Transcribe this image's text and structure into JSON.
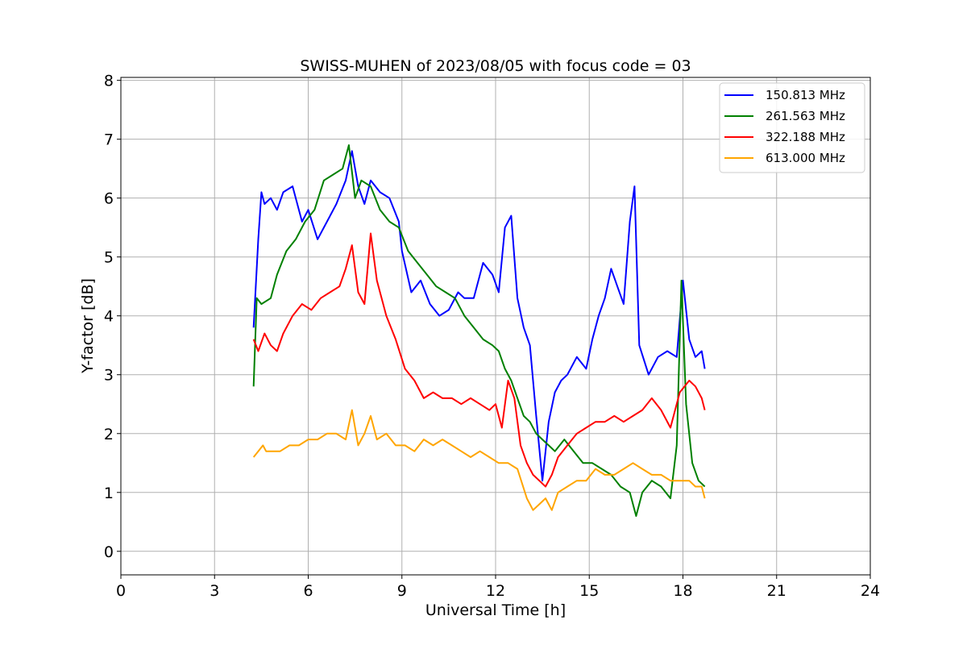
{
  "chart_data": {
    "type": "line",
    "title": "SWISS-MUHEN of 2023/08/05 with focus code = 03",
    "xlabel": "Universal Time [h]",
    "ylabel": "Y-factor [dB]",
    "xlim": [
      0,
      24
    ],
    "ylim": [
      -0.4,
      8.05
    ],
    "xticks": [
      0,
      3,
      6,
      9,
      12,
      15,
      18,
      21,
      24
    ],
    "xtick_labels": [
      "0",
      "3",
      "6",
      "9",
      "12",
      "15",
      "18",
      "21",
      "24"
    ],
    "yticks": [
      0,
      1,
      2,
      3,
      4,
      5,
      6,
      7,
      8
    ],
    "ytick_labels": [
      "0",
      "1",
      "2",
      "3",
      "4",
      "5",
      "6",
      "7",
      "8"
    ],
    "grid": true,
    "legend_position": "top-right",
    "series": [
      {
        "name": "150.813 MHz",
        "color": "#0000ff",
        "x": [
          4.25,
          4.4,
          4.5,
          4.6,
          4.8,
          5.0,
          5.2,
          5.5,
          5.8,
          6.0,
          6.3,
          6.6,
          6.9,
          7.2,
          7.4,
          7.6,
          7.8,
          8.0,
          8.3,
          8.6,
          8.9,
          9.0,
          9.3,
          9.6,
          9.9,
          10.2,
          10.5,
          10.8,
          11.0,
          11.3,
          11.6,
          11.9,
          12.1,
          12.3,
          12.5,
          12.7,
          12.9,
          13.1,
          13.3,
          13.5,
          13.7,
          13.9,
          14.1,
          14.3,
          14.6,
          14.9,
          15.1,
          15.3,
          15.5,
          15.7,
          15.9,
          16.1,
          16.3,
          16.45,
          16.6,
          16.9,
          17.2,
          17.5,
          17.8,
          18.0,
          18.2,
          18.4,
          18.6,
          18.7
        ],
        "values": [
          3.8,
          5.3,
          6.1,
          5.9,
          6.0,
          5.8,
          6.1,
          6.2,
          5.6,
          5.8,
          5.3,
          5.6,
          5.9,
          6.3,
          6.8,
          6.2,
          5.9,
          6.3,
          6.1,
          6.0,
          5.6,
          5.1,
          4.4,
          4.6,
          4.2,
          4.0,
          4.1,
          4.4,
          4.3,
          4.3,
          4.9,
          4.7,
          4.4,
          5.5,
          5.7,
          4.3,
          3.8,
          3.5,
          2.3,
          1.2,
          2.2,
          2.7,
          2.9,
          3.0,
          3.3,
          3.1,
          3.6,
          4.0,
          4.3,
          4.8,
          4.5,
          4.2,
          5.6,
          6.2,
          3.5,
          3.0,
          3.3,
          3.4,
          3.3,
          4.6,
          3.6,
          3.3,
          3.4,
          3.1
        ]
      },
      {
        "name": "261.563 MHz",
        "color": "#008000",
        "x": [
          4.25,
          4.35,
          4.5,
          4.8,
          5.0,
          5.3,
          5.6,
          5.9,
          6.2,
          6.5,
          6.8,
          7.1,
          7.3,
          7.5,
          7.7,
          8.0,
          8.3,
          8.6,
          8.9,
          9.2,
          9.5,
          9.8,
          10.1,
          10.4,
          10.7,
          11.0,
          11.3,
          11.6,
          11.9,
          12.1,
          12.3,
          12.5,
          12.7,
          12.9,
          13.1,
          13.3,
          13.5,
          13.7,
          13.9,
          14.2,
          14.5,
          14.8,
          15.1,
          15.4,
          15.7,
          16.0,
          16.3,
          16.5,
          16.7,
          17.0,
          17.3,
          17.6,
          17.8,
          17.95,
          18.1,
          18.3,
          18.5,
          18.7
        ],
        "values": [
          2.8,
          4.3,
          4.2,
          4.3,
          4.7,
          5.1,
          5.3,
          5.6,
          5.8,
          6.3,
          6.4,
          6.5,
          6.9,
          6.0,
          6.3,
          6.2,
          5.8,
          5.6,
          5.5,
          5.1,
          4.9,
          4.7,
          4.5,
          4.4,
          4.3,
          4.0,
          3.8,
          3.6,
          3.5,
          3.4,
          3.1,
          2.9,
          2.6,
          2.3,
          2.2,
          2.0,
          1.9,
          1.8,
          1.7,
          1.9,
          1.7,
          1.5,
          1.5,
          1.4,
          1.3,
          1.1,
          1.0,
          0.6,
          1.0,
          1.2,
          1.1,
          0.9,
          1.8,
          4.6,
          2.5,
          1.5,
          1.2,
          1.1
        ]
      },
      {
        "name": "322.188 MHz",
        "color": "#ff0000",
        "x": [
          4.25,
          4.4,
          4.6,
          4.8,
          5.0,
          5.2,
          5.5,
          5.8,
          6.1,
          6.4,
          6.7,
          7.0,
          7.2,
          7.4,
          7.6,
          7.8,
          8.0,
          8.2,
          8.5,
          8.8,
          9.1,
          9.4,
          9.7,
          10.0,
          10.3,
          10.6,
          10.9,
          11.2,
          11.5,
          11.8,
          12.0,
          12.2,
          12.4,
          12.6,
          12.8,
          13.0,
          13.2,
          13.4,
          13.6,
          13.8,
          14.0,
          14.3,
          14.6,
          14.9,
          15.2,
          15.5,
          15.8,
          16.1,
          16.4,
          16.7,
          17.0,
          17.3,
          17.6,
          17.9,
          18.2,
          18.4,
          18.6,
          18.7
        ],
        "values": [
          3.6,
          3.4,
          3.7,
          3.5,
          3.4,
          3.7,
          4.0,
          4.2,
          4.1,
          4.3,
          4.4,
          4.5,
          4.8,
          5.2,
          4.4,
          4.2,
          5.4,
          4.6,
          4.0,
          3.6,
          3.1,
          2.9,
          2.6,
          2.7,
          2.6,
          2.6,
          2.5,
          2.6,
          2.5,
          2.4,
          2.5,
          2.1,
          2.9,
          2.6,
          1.8,
          1.5,
          1.3,
          1.2,
          1.1,
          1.3,
          1.6,
          1.8,
          2.0,
          2.1,
          2.2,
          2.2,
          2.3,
          2.2,
          2.3,
          2.4,
          2.6,
          2.4,
          2.1,
          2.7,
          2.9,
          2.8,
          2.6,
          2.4
        ]
      },
      {
        "name": "613.000 MHz",
        "color": "#ffa500",
        "x": [
          4.25,
          4.4,
          4.55,
          4.65,
          4.8,
          5.1,
          5.4,
          5.7,
          6.0,
          6.3,
          6.6,
          6.9,
          7.2,
          7.4,
          7.6,
          7.8,
          8.0,
          8.2,
          8.5,
          8.8,
          9.1,
          9.4,
          9.7,
          10.0,
          10.3,
          10.6,
          10.9,
          11.2,
          11.5,
          11.8,
          12.1,
          12.4,
          12.7,
          13.0,
          13.2,
          13.4,
          13.6,
          13.8,
          14.0,
          14.3,
          14.6,
          14.9,
          15.2,
          15.5,
          15.8,
          16.1,
          16.4,
          16.7,
          17.0,
          17.3,
          17.6,
          17.9,
          18.2,
          18.4,
          18.6,
          18.7
        ],
        "values": [
          1.6,
          1.7,
          1.8,
          1.7,
          1.7,
          1.7,
          1.8,
          1.8,
          1.9,
          1.9,
          2.0,
          2.0,
          1.9,
          2.4,
          1.8,
          2.0,
          2.3,
          1.9,
          2.0,
          1.8,
          1.8,
          1.7,
          1.9,
          1.8,
          1.9,
          1.8,
          1.7,
          1.6,
          1.7,
          1.6,
          1.5,
          1.5,
          1.4,
          0.9,
          0.7,
          0.8,
          0.9,
          0.7,
          1.0,
          1.1,
          1.2,
          1.2,
          1.4,
          1.3,
          1.3,
          1.4,
          1.5,
          1.4,
          1.3,
          1.3,
          1.2,
          1.2,
          1.2,
          1.1,
          1.1,
          0.9
        ]
      }
    ]
  }
}
